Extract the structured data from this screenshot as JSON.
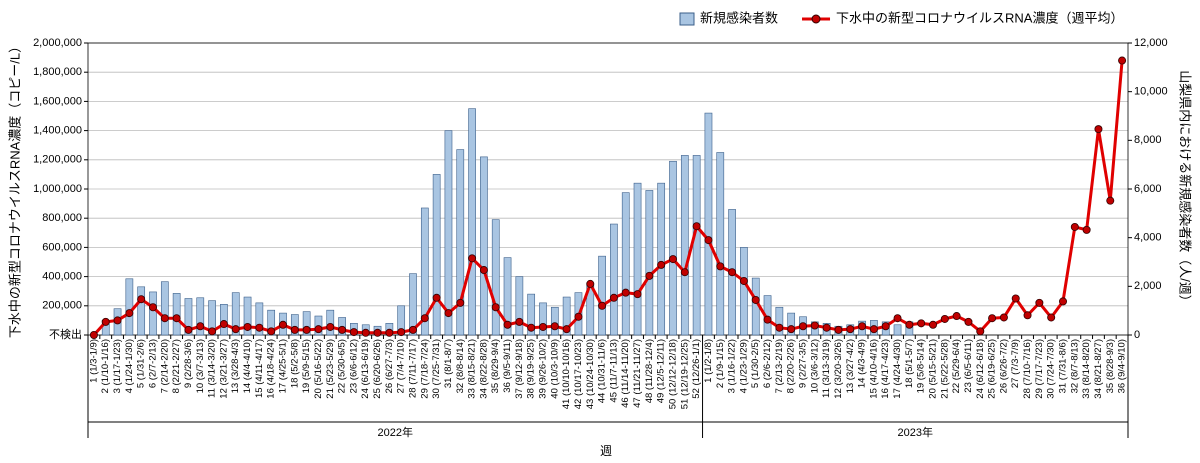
{
  "chart_data": {
    "type": "bar",
    "y_label": "下水中の新型コロナウイルスRNA濃度（コピー/L）",
    "y2_label": "山梨県内における新規感染者数（人/週）",
    "x_label": "週",
    "x_groups": [
      "2022年",
      "2023年"
    ],
    "categories": [
      "1 (1/3-1/9)",
      "2 (1/10-1/16)",
      "3 (1/17-1/23)",
      "4 (1/24-1/30)",
      "5 (1/31-2/6)",
      "6 (2/7-2/13)",
      "7 (2/14-2/20)",
      "8 (2/21-2/27)",
      "9 (2/28-3/6)",
      "10 (3/7-3/13)",
      "11 (3/14-3/20)",
      "12 (3/21-3/27)",
      "13 (3/28-4/3)",
      "14 (4/4-4/10)",
      "15 (4/11-4/17)",
      "16 (4/18-4/24)",
      "17 (4/25-5/1)",
      "18 (5/2-5/8)",
      "19 (5/9-5/15)",
      "20 (5/16-5/22)",
      "21 (5/23-5/29)",
      "22 (5/30-6/5)",
      "23 (6/6-6/12)",
      "24 (6/13-6/19)",
      "25 (6/20-6/26)",
      "26 (6/27-7/3)",
      "27 (7/4-7/10)",
      "28 (7/11-7/17)",
      "29 (7/18-7/24)",
      "30 (7/25-7/31)",
      "31 (8/1-8/7)",
      "32 (8/8-8/14)",
      "33 (8/15-8/21)",
      "34 (8/22-8/28)",
      "35 (8/29-9/4)",
      "36 (9/5-9/11)",
      "37 (9/12-9/18)",
      "38 (9/19-9/25)",
      "39 (9/26-10/2)",
      "40 (10/3-10/9)",
      "41 (10/10-10/16)",
      "42 (10/17-10/23)",
      "43 (10/24-10/30)",
      "44 (10/31-11/6)",
      "45 (11/7-11/13)",
      "46 (11/14-11/20)",
      "47 (11/21-11/27)",
      "48 (11/28-12/4)",
      "49 (12/5-12/11)",
      "50 (12/12-12/18)",
      "51 (12/19-12/25)",
      "52 (12/26-1/1)",
      "1 (1/2-1/8)",
      "2 (1/9-1/15)",
      "3 (1/16-1/22)",
      "4 (1/23-1/29)",
      "5 (1/30-2/5)",
      "6 (2/6-2/12)",
      "7 (2/13-2/19)",
      "8 (2/20-2/26)",
      "9 (2/27-3/5)",
      "10 (3/6-3/12)",
      "11 (3/13-3/19)",
      "12 (3/20-3/26)",
      "13 (3/27-4/2)",
      "14 (4/3-4/9)",
      "15 (4/10-4/16)",
      "16 (4/17-4/23)",
      "17 (4/24-4/30)",
      "18 (5/1-5/7)",
      "19 (5/8-5/14)",
      "20 (5/15-5/21)",
      "21 (5/22-5/28)",
      "22 (5/29-6/4)",
      "23 (6/5-6/11)",
      "24 (6/12-6/18)",
      "25 (6/19-6/25)",
      "26 (6/26-7/2)",
      "27 (7/3-7/9)",
      "28 (7/10-7/16)",
      "29 (7/17-7/23)",
      "30 (7/24-7/30)",
      "31 (7/31-8/6)",
      "32 (8/7-8/13)",
      "33 (8/14-8/20)",
      "34 (8/21-8/27)",
      "35 (8/28-9/3)",
      "36 (9/4-9/10)"
    ],
    "series": [
      {
        "name": "新規感染者数",
        "type": "bar",
        "axis": "y2",
        "color": "#a9c5e2",
        "edge": "#3b5f8a",
        "values": [
          30,
          600,
          1080,
          2310,
          1980,
          1770,
          2190,
          1710,
          1500,
          1530,
          1410,
          1260,
          1740,
          1560,
          1320,
          1020,
          900,
          840,
          960,
          780,
          1020,
          720,
          480,
          420,
          360,
          480,
          1200,
          2520,
          5220,
          6600,
          8400,
          7620,
          9300,
          7320,
          4740,
          3180,
          2400,
          1680,
          1320,
          1140,
          1560,
          1740,
          2100,
          3240,
          4560,
          5850,
          6240,
          5940,
          6240,
          7140,
          7380,
          7380,
          9120,
          7500,
          5160,
          3600,
          2340,
          1620,
          1140,
          900,
          750,
          540,
          480,
          360,
          420,
          570,
          600,
          540,
          420,
          540,
          null,
          null,
          null,
          null,
          null,
          null,
          null,
          null,
          null,
          null,
          null,
          null,
          null,
          null,
          null,
          null,
          null,
          null
        ]
      },
      {
        "name": "下水中の新型コロナウイルスRNA濃度（週平均）",
        "type": "line",
        "axis": "y",
        "color": "#e00000",
        "marker_color": "#c00000",
        "values": [
          0,
          90000,
          100000,
          150000,
          245000,
          190000,
          115000,
          115000,
          35000,
          60000,
          25000,
          75000,
          40000,
          55000,
          50000,
          25000,
          70000,
          35000,
          35000,
          40000,
          55000,
          35000,
          20000,
          15000,
          15000,
          15000,
          20000,
          35000,
          115000,
          255000,
          150000,
          220000,
          525000,
          445000,
          190000,
          70000,
          90000,
          50000,
          55000,
          60000,
          40000,
          125000,
          350000,
          200000,
          255000,
          290000,
          280000,
          405000,
          480000,
          520000,
          430000,
          745000,
          650000,
          470000,
          430000,
          370000,
          240000,
          105000,
          50000,
          40000,
          60000,
          65000,
          50000,
          35000,
          40000,
          60000,
          40000,
          60000,
          115000,
          70000,
          80000,
          70000,
          110000,
          130000,
          90000,
          25000,
          115000,
          120000,
          250000,
          135000,
          220000,
          120000,
          230000,
          740000,
          720000,
          1410000,
          920000,
          1880000
        ]
      }
    ],
    "ylim": [
      0,
      2000000
    ],
    "yticks": [
      {
        "value": 0,
        "label": "不検出"
      },
      {
        "value": 200000,
        "label": "200,000"
      },
      {
        "value": 400000,
        "label": "400,000"
      },
      {
        "value": 600000,
        "label": "600,000"
      },
      {
        "value": 800000,
        "label": "800,000"
      },
      {
        "value": 1000000,
        "label": "1,000,000"
      },
      {
        "value": 1200000,
        "label": "1,200,000"
      },
      {
        "value": 1400000,
        "label": "1,400,000"
      },
      {
        "value": 1600000,
        "label": "1,600,000"
      },
      {
        "value": 1800000,
        "label": "1,800,000"
      },
      {
        "value": 2000000,
        "label": "2,000,000"
      }
    ],
    "y2lim": [
      0,
      12000
    ],
    "y2ticks": [
      0,
      {
        "value": 2000,
        "label": "2,000"
      },
      {
        "value": 4000,
        "label": "4,000"
      },
      {
        "value": 6000,
        "label": "6,000"
      },
      {
        "value": 8000,
        "label": "8,000"
      },
      {
        "value": 10000,
        "label": "10,000"
      },
      {
        "value": 12000,
        "label": "12,000"
      }
    ],
    "grid": true,
    "legend": "top-right"
  }
}
